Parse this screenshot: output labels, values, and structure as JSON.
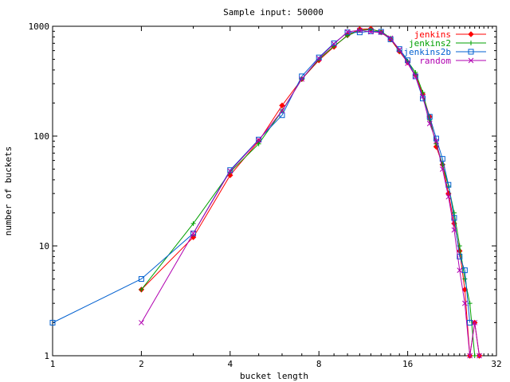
{
  "chart_data": {
    "type": "line",
    "title": "Sample input: 50000",
    "xlabel": "bucket length",
    "ylabel": "number of buckets",
    "x_scale": "log2",
    "y_scale": "log10",
    "xlim": [
      1,
      32
    ],
    "ylim": [
      1,
      1000
    ],
    "x_ticks": [
      1,
      2,
      4,
      8,
      16,
      32
    ],
    "y_ticks": [
      1,
      10,
      100,
      1000
    ],
    "grid": false,
    "legend_position": "top-right",
    "series": [
      {
        "name": "jenkins",
        "color": "#ff0000",
        "marker": "diamond",
        "points": [
          [
            2,
            4
          ],
          [
            3,
            12
          ],
          [
            4,
            44
          ],
          [
            5,
            90
          ],
          [
            6,
            190
          ],
          [
            7,
            330
          ],
          [
            8,
            490
          ],
          [
            9,
            650
          ],
          [
            10,
            830
          ],
          [
            11,
            940
          ],
          [
            12,
            950
          ],
          [
            13,
            880
          ],
          [
            14,
            760
          ],
          [
            15,
            590
          ],
          [
            16,
            470
          ],
          [
            17,
            360
          ],
          [
            18,
            240
          ],
          [
            19,
            150
          ],
          [
            20,
            80
          ],
          [
            21,
            55
          ],
          [
            22,
            30
          ],
          [
            23,
            16
          ],
          [
            24,
            9
          ],
          [
            25,
            4
          ],
          [
            26,
            1
          ],
          [
            27,
            2
          ],
          [
            28,
            1
          ]
        ]
      },
      {
        "name": "jenkins2",
        "color": "#00a000",
        "marker": "plus",
        "points": [
          [
            2,
            4
          ],
          [
            3,
            16
          ],
          [
            4,
            47
          ],
          [
            5,
            85
          ],
          [
            6,
            170
          ],
          [
            7,
            330
          ],
          [
            8,
            500
          ],
          [
            9,
            660
          ],
          [
            10,
            820
          ],
          [
            11,
            920
          ],
          [
            12,
            930
          ],
          [
            13,
            900
          ],
          [
            14,
            780
          ],
          [
            15,
            600
          ],
          [
            16,
            480
          ],
          [
            17,
            380
          ],
          [
            18,
            250
          ],
          [
            19,
            140
          ],
          [
            20,
            85
          ],
          [
            21,
            55
          ],
          [
            22,
            35
          ],
          [
            23,
            20
          ],
          [
            24,
            10
          ],
          [
            25,
            5
          ],
          [
            26,
            3
          ],
          [
            27,
            1
          ]
        ]
      },
      {
        "name": "jenkins2b",
        "color": "#0060d0",
        "marker": "square",
        "points": [
          [
            1,
            2
          ],
          [
            2,
            5
          ],
          [
            3,
            13
          ],
          [
            4,
            49
          ],
          [
            5,
            93
          ],
          [
            6,
            155
          ],
          [
            7,
            350
          ],
          [
            8,
            520
          ],
          [
            9,
            700
          ],
          [
            10,
            880
          ],
          [
            11,
            880
          ],
          [
            12,
            900
          ],
          [
            13,
            890
          ],
          [
            14,
            760
          ],
          [
            15,
            620
          ],
          [
            16,
            490
          ],
          [
            17,
            350
          ],
          [
            18,
            220
          ],
          [
            19,
            150
          ],
          [
            20,
            95
          ],
          [
            21,
            62
          ],
          [
            22,
            36
          ],
          [
            23,
            18
          ],
          [
            24,
            8
          ],
          [
            25,
            6
          ],
          [
            26,
            2
          ]
        ]
      },
      {
        "name": "random",
        "color": "#b000b0",
        "marker": "cross",
        "points": [
          [
            2,
            2
          ],
          [
            3,
            13
          ],
          [
            4,
            48
          ],
          [
            5,
            92
          ],
          [
            6,
            170
          ],
          [
            7,
            330
          ],
          [
            8,
            510
          ],
          [
            9,
            690
          ],
          [
            10,
            890
          ],
          [
            11,
            920
          ],
          [
            12,
            890
          ],
          [
            13,
            880
          ],
          [
            14,
            780
          ],
          [
            15,
            610
          ],
          [
            16,
            460
          ],
          [
            17,
            350
          ],
          [
            18,
            230
          ],
          [
            19,
            130
          ],
          [
            20,
            90
          ],
          [
            21,
            50
          ],
          [
            22,
            28
          ],
          [
            23,
            14
          ],
          [
            24,
            6
          ],
          [
            25,
            3
          ],
          [
            26,
            1
          ],
          [
            27,
            2
          ],
          [
            28,
            1
          ]
        ]
      }
    ]
  }
}
